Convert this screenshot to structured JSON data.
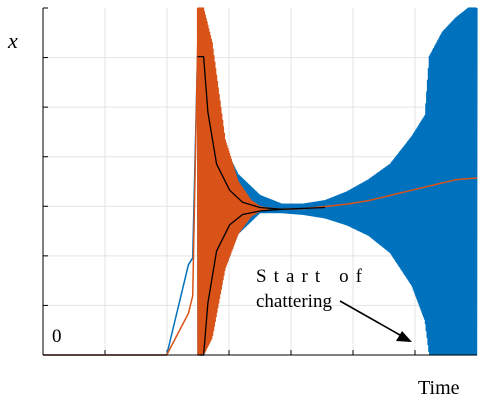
{
  "chart_data": {
    "type": "line",
    "title": "",
    "xlabel": "Time",
    "ylabel": "x",
    "origin_label": "0",
    "annotation": {
      "lines": [
        "Start of",
        "chattering"
      ]
    },
    "grid": true,
    "xlim": [
      0,
      100
    ],
    "ylim": [
      0,
      100
    ],
    "series": [
      {
        "color": "#0072BD",
        "style": "oscillating-band",
        "centerline": [
          [
            0,
            0
          ],
          [
            28.5,
            0
          ],
          [
            33.5,
            26
          ],
          [
            34.5,
            28
          ],
          [
            35.6,
            86
          ],
          [
            36.2,
            0
          ],
          [
            37,
            0
          ],
          [
            42,
            56
          ],
          [
            48,
            44.5
          ],
          [
            55,
            42
          ],
          [
            65,
            42.5
          ],
          [
            75,
            43
          ],
          [
            85,
            44
          ],
          [
            92,
            45
          ],
          [
            100,
            46
          ]
        ],
        "envelope_upper": [
          [
            35.6,
            86
          ],
          [
            37,
            86
          ],
          [
            41,
            62
          ],
          [
            45,
            52
          ],
          [
            50,
            46
          ],
          [
            55,
            43.5
          ],
          [
            60,
            43.5
          ],
          [
            65,
            44.5
          ],
          [
            70,
            47
          ],
          [
            75,
            50.5
          ],
          [
            80,
            55
          ],
          [
            85,
            63
          ],
          [
            88,
            69
          ],
          [
            89,
            86
          ],
          [
            92,
            93
          ],
          [
            95,
            97
          ],
          [
            98,
            100
          ],
          [
            100,
            100
          ]
        ],
        "envelope_lower": [
          [
            35.6,
            0
          ],
          [
            37,
            0
          ],
          [
            41,
            22
          ],
          [
            45,
            35
          ],
          [
            50,
            41
          ],
          [
            55,
            41
          ],
          [
            60,
            40.5
          ],
          [
            65,
            39.5
          ],
          [
            70,
            37.5
          ],
          [
            75,
            34.5
          ],
          [
            80,
            29.5
          ],
          [
            85,
            20
          ],
          [
            88,
            10
          ],
          [
            89,
            0
          ],
          [
            100,
            0
          ]
        ]
      },
      {
        "color": "#D95319",
        "style": "oscillating-band",
        "centerline": [
          [
            0,
            0
          ],
          [
            28.5,
            0
          ],
          [
            33.5,
            12
          ],
          [
            34.5,
            17
          ],
          [
            35.8,
            100
          ],
          [
            36.5,
            70
          ],
          [
            40,
            50
          ],
          [
            45,
            44.5
          ],
          [
            50,
            42.5
          ],
          [
            55,
            42
          ],
          [
            60,
            42.2
          ],
          [
            65,
            42.8
          ],
          [
            70,
            43.5
          ],
          [
            75,
            44.5
          ],
          [
            80,
            46
          ],
          [
            85,
            47.5
          ],
          [
            90,
            49
          ],
          [
            95,
            50.5
          ],
          [
            100,
            51
          ]
        ],
        "envelope_upper": [
          [
            35.6,
            100
          ],
          [
            37,
            100
          ],
          [
            39,
            90
          ],
          [
            42,
            62
          ],
          [
            45,
            50
          ],
          [
            48,
            44.5
          ],
          [
            50,
            42.8
          ],
          [
            52,
            42.3
          ]
        ],
        "envelope_lower": [
          [
            35.6,
            0
          ],
          [
            37,
            0
          ],
          [
            39,
            5
          ],
          [
            42,
            25
          ],
          [
            45,
            35
          ],
          [
            48,
            40
          ],
          [
            50,
            41.5
          ],
          [
            52,
            42
          ]
        ]
      },
      {
        "color": "#000000",
        "style": "line",
        "points": [
          [
            35.6,
            86
          ],
          [
            37,
            86
          ],
          [
            38,
            70
          ],
          [
            40,
            55
          ],
          [
            43,
            47.5
          ],
          [
            46,
            44
          ],
          [
            50,
            42.5
          ],
          [
            55,
            42
          ],
          [
            65,
            42.5
          ]
        ]
      },
      {
        "color": "#000000",
        "style": "line",
        "points": [
          [
            35.6,
            0
          ],
          [
            37,
            0
          ],
          [
            38,
            15
          ],
          [
            40,
            30
          ],
          [
            43,
            37.5
          ],
          [
            46,
            40.5
          ],
          [
            50,
            41.5
          ],
          [
            55,
            42
          ]
        ]
      }
    ]
  }
}
